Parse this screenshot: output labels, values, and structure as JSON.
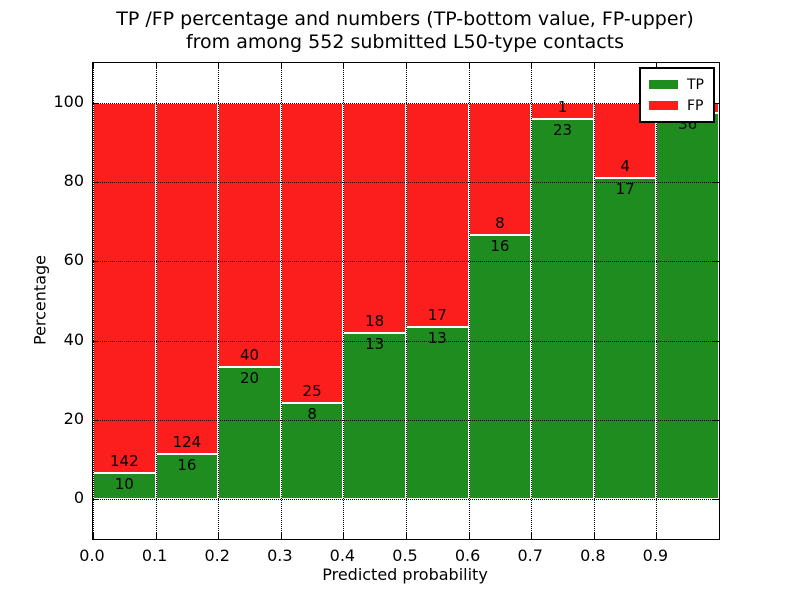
{
  "figure": {
    "title_line1": "TP /FP percentage and numbers (TP-bottom value, FP-upper)",
    "title_line2": "from among 552 submitted L50-type contacts",
    "xlabel": "Predicted probability",
    "ylabel": "Percentage"
  },
  "legend": {
    "items": [
      {
        "label": "TP",
        "color": "#1f8c1f"
      },
      {
        "label": "FP",
        "color": "#fc1d1d"
      }
    ]
  },
  "chart_data": {
    "type": "bar",
    "stacked": true,
    "normalized_to_percent": true,
    "title": "TP /FP percentage and numbers (TP-bottom value, FP-upper) from among 552 submitted L50-type contacts",
    "xlabel": "Predicted probability",
    "ylabel": "Percentage",
    "total_submitted": 552,
    "bin_width": 0.1,
    "categories": [
      "0.0",
      "0.1",
      "0.2",
      "0.3",
      "0.4",
      "0.5",
      "0.6",
      "0.7",
      "0.8",
      "0.9"
    ],
    "series": [
      {
        "name": "TP",
        "color": "#1f8c1f",
        "stack_position": "bottom",
        "counts": [
          10,
          16,
          20,
          8,
          13,
          13,
          16,
          23,
          17,
          36
        ]
      },
      {
        "name": "FP",
        "color": "#fc1d1d",
        "stack_position": "top",
        "counts": [
          142,
          124,
          40,
          25,
          18,
          17,
          8,
          1,
          4,
          1
        ]
      }
    ],
    "tp_percent_of_bin": [
      6.6,
      11.4,
      33.3,
      24.2,
      41.9,
      43.3,
      66.7,
      95.8,
      81.0,
      97.3
    ],
    "bar_label_rule": "TP count printed just below segment boundary, FP count just above",
    "xticks": [
      "0.0",
      "0.1",
      "0.2",
      "0.3",
      "0.4",
      "0.5",
      "0.6",
      "0.7",
      "0.8",
      "0.9"
    ],
    "yticks": [
      0,
      20,
      40,
      60,
      80,
      100
    ],
    "xlim": [
      0.0,
      1.0
    ],
    "ylim": [
      -10,
      110
    ],
    "grid": "dotted",
    "legend_position": "upper right"
  }
}
